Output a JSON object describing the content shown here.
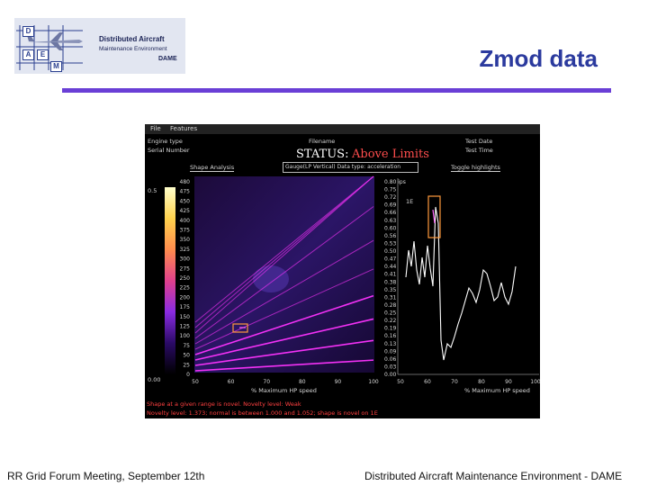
{
  "logo": {
    "letters": [
      "D",
      "A",
      "M",
      "E"
    ],
    "line1": "Distributed Aircraft",
    "line2": "Maintenance Environment",
    "line3": "DAME"
  },
  "slide": {
    "title": "Zmod data"
  },
  "footer": {
    "left": "RR Grid Forum Meeting, September 12th",
    "right": "Distributed Aircraft Maintenance Environment - DAME"
  },
  "screen": {
    "menu": {
      "file": "File",
      "features": "Features"
    },
    "header": {
      "engine_type": "Engine type",
      "serial_number": "Serial Number",
      "filename": "Filename",
      "test_date": "Test Date",
      "test_time": "Test Time"
    },
    "status": {
      "label": "STATUS:",
      "value": "Above Limits"
    },
    "controls": {
      "shape_analysis": "Shape Analysis",
      "dropdown": "Gauge(LP Vertical) Data type: acceleration",
      "toggle_highlights": "Toggle highlights"
    },
    "colorbar": {
      "top": "0.5",
      "bottom": "0.00"
    },
    "zmod": {
      "y_ticks": [
        "480",
        "475",
        "450",
        "425",
        "400",
        "375",
        "350",
        "325",
        "300",
        "275",
        "250",
        "225",
        "200",
        "175",
        "150",
        "125",
        "100",
        "75",
        "50",
        "25",
        "0"
      ],
      "x_ticks": [
        "50",
        "60",
        "70",
        "80",
        "90",
        "100"
      ],
      "xlabel": "% Maximum HP speed"
    },
    "trace": {
      "y_ticks": [
        "0.80 ips",
        "0.75",
        "0.72",
        "0.69",
        "0.66",
        "0.63",
        "0.60",
        "0.56",
        "0.53",
        "0.50",
        "0.47",
        "0.44",
        "0.41",
        "0.38",
        "0.35",
        "0.31",
        "0.28",
        "0.25",
        "0.22",
        "0.19",
        "0.16",
        "0.13",
        "0.09",
        "0.06",
        "0.03",
        "0.00"
      ],
      "x_ticks": [
        "50",
        "60",
        "70",
        "80",
        "90",
        "100"
      ],
      "xlabel": "% Maximum HP speed",
      "flag": "1E"
    },
    "messages": {
      "line1": "Shape at a given range is novel. Novelty level: Weak",
      "line2": "Novelty level: 1.373; normal is between 1.000 and 1.052; shape is novel on 1E"
    }
  },
  "colors": {
    "title": "#2b3a9e",
    "rule": "#6a3fd6",
    "status_value": "#ff4d4d",
    "highlight_box": "#ff9a3c",
    "message": "#ff4040",
    "plot_line": "#ff33ff"
  }
}
